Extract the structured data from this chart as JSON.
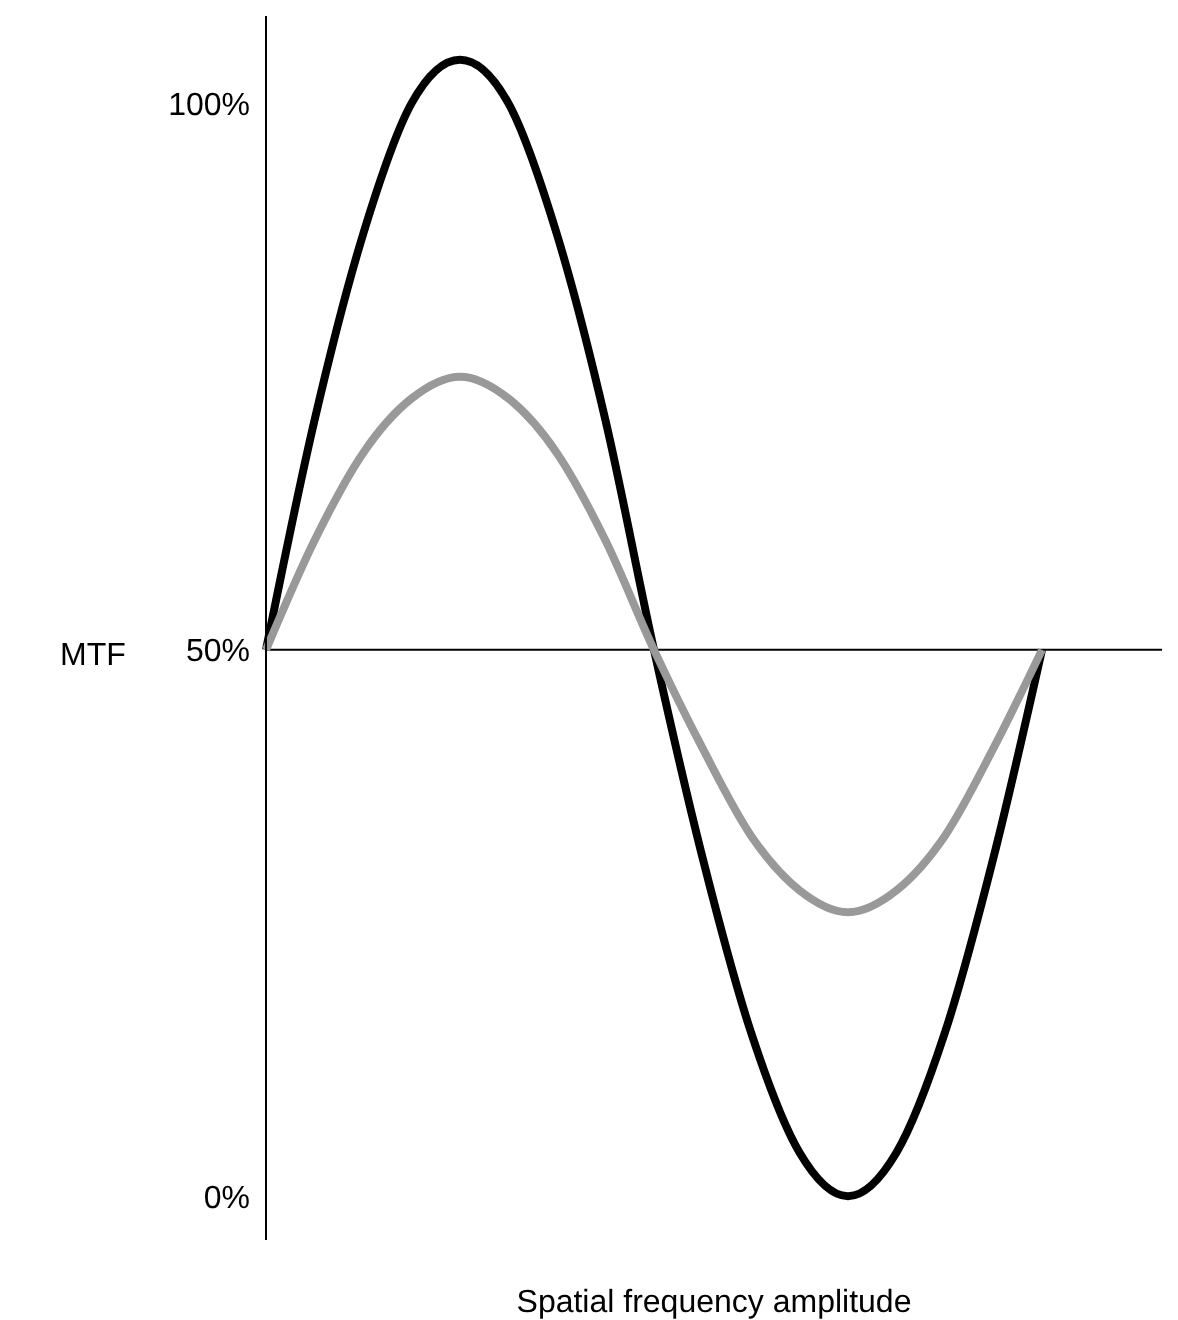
{
  "chart_data": {
    "type": "line",
    "xlabel": "Spatial frequency amplitude",
    "ylabel": "MTF",
    "categories": [
      null,
      null,
      null,
      null,
      null,
      null,
      null,
      null,
      null,
      null,
      null,
      null,
      null,
      null,
      null,
      null,
      null
    ],
    "series": [
      {
        "color": "#000000",
        "values": [
          50,
          71,
          88,
          100,
          104,
          100,
          88,
          71,
          50,
          31,
          15,
          4,
          0,
          4,
          15,
          31,
          50
        ]
      },
      {
        "color": "#999999",
        "values": [
          50,
          60,
          68,
          73,
          75,
          73,
          68,
          60,
          50,
          41,
          33,
          28,
          26,
          28,
          33,
          41,
          50
        ]
      }
    ],
    "ylim": [
      -4,
      108
    ],
    "yticks": [
      {
        "value": 0,
        "label": "0%"
      },
      {
        "value": 50,
        "label": "50%"
      },
      {
        "value": 100,
        "label": "100%"
      }
    ],
    "ref_lines": [
      {
        "axis": "y",
        "value": 50,
        "color": "#000000"
      }
    ],
    "tick_labels": "y",
    "grid": false,
    "legend": false,
    "marker": "none",
    "line_style": "solid"
  }
}
